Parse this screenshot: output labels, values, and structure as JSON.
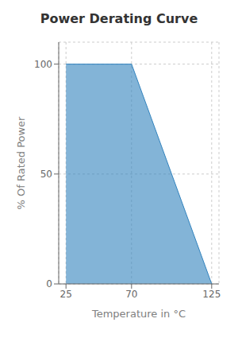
{
  "chart_data": {
    "type": "area",
    "title": "Power Derating Curve",
    "x": [
      25,
      70,
      125
    ],
    "values": [
      100,
      100,
      0
    ],
    "xlabel": "Temperature in °C",
    "ylabel": "% Of Rated Power",
    "xlim": [
      20,
      130
    ],
    "xticks": [
      25,
      70,
      125
    ],
    "ylim": [
      0,
      110
    ],
    "yticks": [
      0,
      50,
      100
    ],
    "grid": true
  }
}
